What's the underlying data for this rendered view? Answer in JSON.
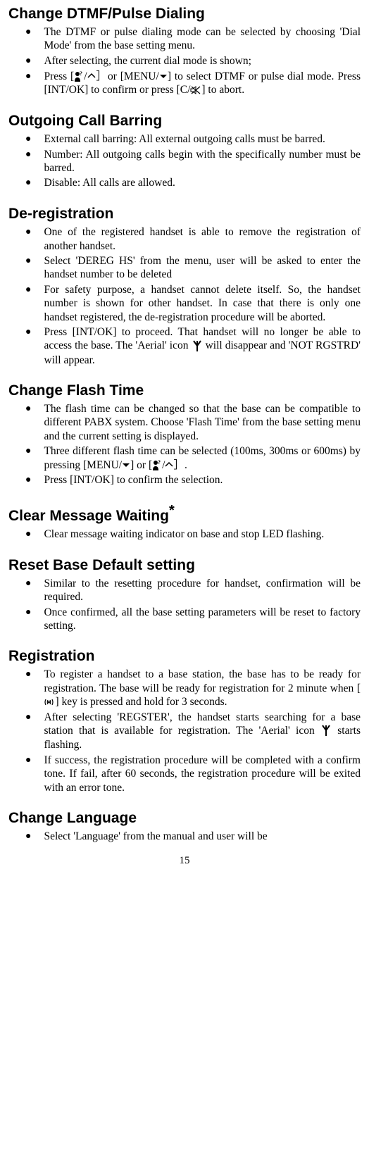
{
  "sections": [
    {
      "title": "Change DTMF/Pulse Dialing",
      "items": [
        {
          "text": "The DTMF or pulse dialing mode can be selected by choosing 'Dial Mode' from the base setting menu."
        },
        {
          "text": "After selecting, the current dial mode is shown;"
        },
        {
          "parts": [
            "Press [",
            {
              "icon": "person"
            },
            "/",
            {
              "icon": "up"
            },
            "］or  [MENU/",
            {
              "icon": "down"
            },
            "] to select DTMF or pulse dial mode. Press [INT/OK] to confirm or press [C/",
            {
              "icon": "mute"
            },
            "] to abort."
          ]
        }
      ]
    },
    {
      "title": "Outgoing Call Barring",
      "items": [
        {
          "text": "External call barring: All external outgoing calls must be barred."
        },
        {
          "text": "Number: All outgoing calls begin with the specifically number must be barred."
        },
        {
          "text": "Disable: All calls are allowed."
        }
      ]
    },
    {
      "title": "De-registration",
      "items": [
        {
          "text": "One of the registered handset is able to remove the registration of another handset."
        },
        {
          "text": "Select 'DEREG HS' from the menu, user will be asked to enter the handset number to be deleted"
        },
        {
          "text": "For safety purpose, a handset cannot delete itself. So, the handset number is shown for other handset.  In case that there is only one handset registered, the de-registration procedure will be aborted."
        },
        {
          "parts": [
            "Press [INT/OK] to proceed. That handset will no longer be able to access the base. The 'Aerial' icon ",
            {
              "icon": "aerial"
            },
            " will disappear and 'NOT RGSTRD' will appear."
          ]
        }
      ]
    },
    {
      "title": "Change Flash Time",
      "items": [
        {
          "text": "The flash time can be changed so that the base can be compatible to different PABX system.  Choose 'Flash Time' from the base setting menu and the current setting is displayed."
        },
        {
          "parts": [
            "Three different flash time can be selected (100ms, 300ms or 600ms) by pressing [MENU/",
            {
              "icon": "down"
            },
            "] or [",
            {
              "icon": "person"
            },
            "/",
            {
              "icon": "up"
            },
            "］."
          ]
        },
        {
          "text": "Press [INT/OK] to confirm the selection."
        }
      ]
    },
    {
      "title": "Clear Message Waiting",
      "title_sup": "*",
      "items": [
        {
          "text": "Clear message waiting indicator on base and stop LED flashing."
        }
      ]
    },
    {
      "title": "Reset Base Default setting",
      "items": [
        {
          "text": "Similar to the resetting procedure for handset, confirmation will be required."
        },
        {
          "text": "Once confirmed, all the base setting parameters will be reset to factory setting."
        }
      ]
    },
    {
      "title": "Registration",
      "items": [
        {
          "parts": [
            "To register a handset to a base station, the base has to be ready for registration. The base will be ready for registration for 2 minute when [",
            {
              "icon": "wave"
            },
            "] key is pressed and hold for 3 seconds."
          ]
        },
        {
          "parts": [
            "After selecting 'REGSTER', the handset starts searching for a base station that is available for registration. The 'Aerial' icon ",
            {
              "icon": "aerial"
            },
            " starts flashing."
          ]
        },
        {
          "text": "If success, the registration procedure will be completed with a confirm tone. If fail, after 60 seconds, the registration procedure will be exited with an error tone."
        }
      ]
    },
    {
      "title": "Change Language",
      "items": [
        {
          "text": "Select 'Language' from the manual and user will be"
        }
      ]
    }
  ],
  "page_number": "15",
  "colors": {
    "background": "#ffffff",
    "text": "#000000"
  }
}
